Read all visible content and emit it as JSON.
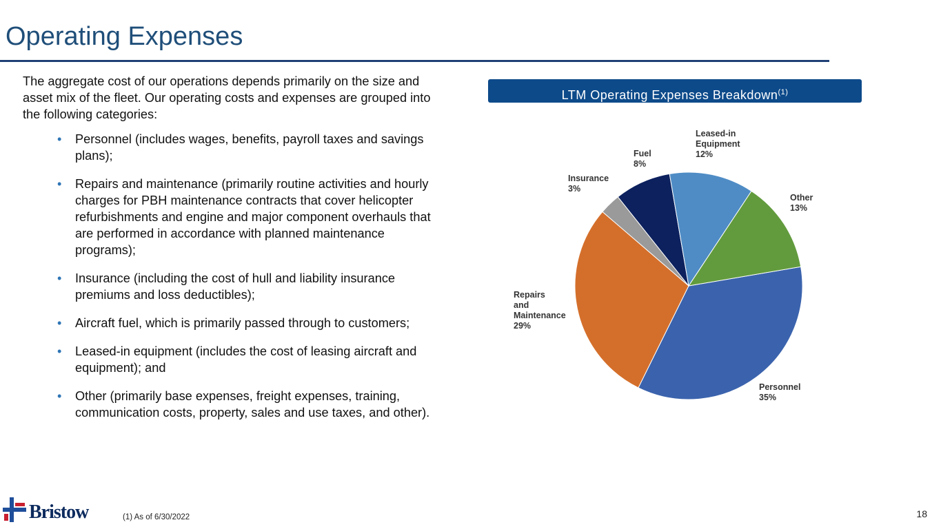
{
  "header": {
    "title": "Operating Expenses"
  },
  "body": {
    "intro": "The aggregate cost of our operations depends primarily on the size and asset mix of the fleet. Our operating costs and expenses are grouped into the following categories:",
    "bullets": [
      "Personnel (includes wages, benefits, payroll taxes and savings plans);",
      "Repairs and maintenance (primarily routine activities and hourly charges for PBH maintenance contracts that cover helicopter refurbishments and engine and major component overhauls that are performed in accordance with planned maintenance programs);",
      "Insurance (including the cost of hull and liability insurance premiums and loss deductibles);",
      "Aircraft fuel, which is primarily passed through to customers;",
      "Leased-in equipment (includes the cost of leasing aircraft and equipment); and",
      "Other (primarily base expenses, freight expenses, training, communication costs, property, sales and use taxes, and other)."
    ]
  },
  "chart_data": {
    "type": "pie",
    "title": "LTM Operating Expenses Breakdown",
    "title_note": "(1)",
    "categories": [
      "Personnel",
      "Repairs and Maintenance",
      "Insurance",
      "Fuel",
      "Leased-in Equipment",
      "Other"
    ],
    "values": [
      35,
      29,
      3,
      8,
      12,
      13
    ],
    "value_labels": [
      "35%",
      "29%",
      "3%",
      "8%",
      "12%",
      "13%"
    ],
    "colors": [
      "#3b63ad",
      "#d46f2b",
      "#9a9a9a",
      "#0c215e",
      "#4f8cc5",
      "#629b3d"
    ]
  },
  "footer": {
    "logo": "Bristow",
    "footnote": "(1)  As of 6/30/2022",
    "page_number": "18"
  }
}
